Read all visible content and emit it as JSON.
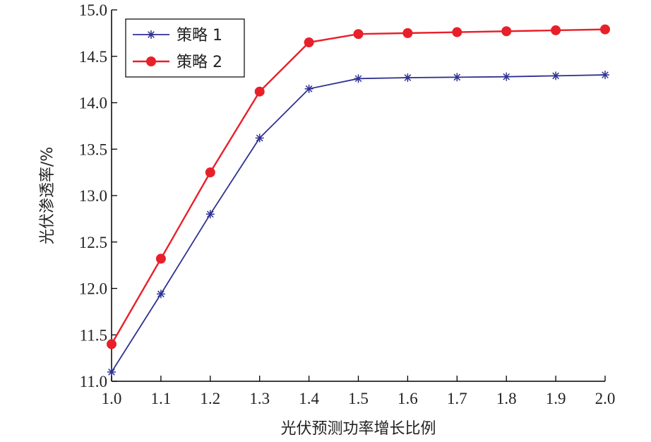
{
  "chart_data": {
    "type": "line",
    "title": "",
    "xlabel": "光伏预测功率增长比例",
    "ylabel": "光伏渗透率/%",
    "xlim": [
      1.0,
      2.0
    ],
    "ylim": [
      11.0,
      15.0
    ],
    "x": [
      1.0,
      1.1,
      1.2,
      1.3,
      1.4,
      1.5,
      1.6,
      1.7,
      1.8,
      1.9,
      2.0
    ],
    "x_tick_labels": [
      "1.0",
      "1.1",
      "1.2",
      "1.3",
      "1.4",
      "1.5",
      "1.6",
      "1.7",
      "1.8",
      "1.9",
      "2.0"
    ],
    "y_ticks": [
      11.0,
      11.5,
      12.0,
      12.5,
      13.0,
      13.5,
      14.0,
      14.5,
      15.0
    ],
    "y_tick_labels": [
      "11.0",
      "11.5",
      "12.0",
      "12.5",
      "13.0",
      "13.5",
      "14.0",
      "14.5",
      "15.0"
    ],
    "grid": false,
    "legend_position": "top-left",
    "series": [
      {
        "name": "策略 1",
        "color": "#2e3192",
        "marker": "asterisk",
        "values": [
          11.1,
          11.94,
          12.8,
          13.62,
          14.15,
          14.26,
          14.27,
          14.275,
          14.28,
          14.29,
          14.3
        ]
      },
      {
        "name": "策略 2",
        "color": "#e8202a",
        "marker": "circle",
        "values": [
          11.4,
          12.32,
          13.25,
          14.12,
          14.65,
          14.74,
          14.75,
          14.76,
          14.77,
          14.78,
          14.79
        ]
      }
    ]
  }
}
